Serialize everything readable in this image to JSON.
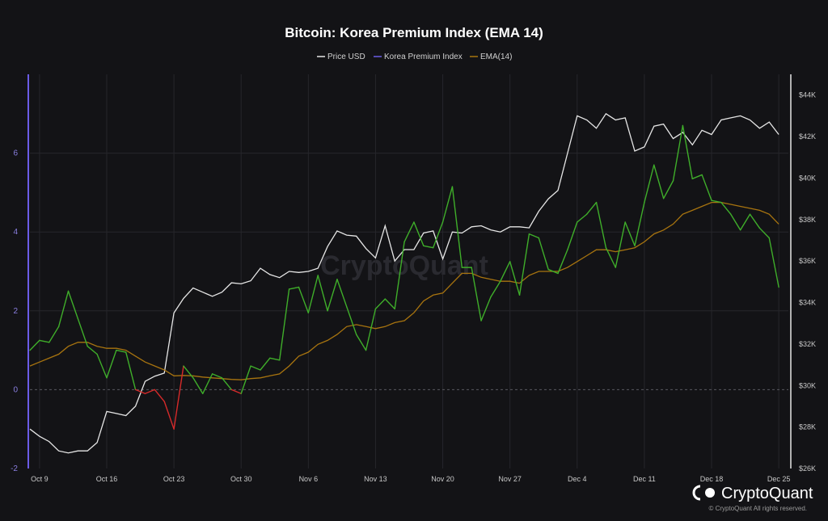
{
  "colors": {
    "background": "#131316",
    "price": "#e6e6e6",
    "premium_positive": "#3fae2a",
    "premium_negative": "#d62a2a",
    "ema": "#a8740f",
    "left_axis": "#6b5ce7",
    "grid": "#26262b"
  },
  "watermark": "CryptoQuant",
  "brand": {
    "logo_icon": "cryptoquant-logo-icon",
    "name": "CryptoQuant",
    "copyright": "© CryptoQuant All rights reserved."
  },
  "chart_data": {
    "type": "line",
    "title": "Bitcoin: Korea Premium Index (EMA 14)",
    "legend": [
      {
        "name": "Price USD",
        "color": "#e6e6e6"
      },
      {
        "name": "Korea Premium Index",
        "color": "#6b5ce7"
      },
      {
        "name": "EMA(14)",
        "color": "#a8740f"
      }
    ],
    "legend_position": "top-center",
    "grid": true,
    "x_range": [
      0,
      79
    ],
    "x_ticks": [
      {
        "label": "Oct 9",
        "x": 1
      },
      {
        "label": "Oct 16",
        "x": 8
      },
      {
        "label": "Oct 23",
        "x": 15
      },
      {
        "label": "Oct 30",
        "x": 22
      },
      {
        "label": "Nov 6",
        "x": 29
      },
      {
        "label": "Nov 13",
        "x": 36
      },
      {
        "label": "Nov 20",
        "x": 43
      },
      {
        "label": "Nov 27",
        "x": 50
      },
      {
        "label": "Dec 4",
        "x": 57
      },
      {
        "label": "Dec 11",
        "x": 64
      },
      {
        "label": "Dec 18",
        "x": 71
      },
      {
        "label": "Dec 25",
        "x": 78
      }
    ],
    "left_axis": {
      "range": [
        -2,
        8
      ],
      "ticks": [
        "-2",
        "0",
        "2",
        "4",
        "6"
      ]
    },
    "right_axis": {
      "range": [
        26000,
        45000
      ],
      "ticks": [
        "$26K",
        "$28K",
        "$30K",
        "$32K",
        "$34K",
        "$36K",
        "$38K",
        "$40K",
        "$42K",
        "$44K"
      ],
      "tick_values": [
        26000,
        28000,
        30000,
        32000,
        34000,
        36000,
        38000,
        40000,
        42000,
        44000
      ]
    },
    "series": [
      {
        "name": "Price USD",
        "axis": "right",
        "values": [
          27900,
          27550,
          27300,
          26850,
          26750,
          26850,
          26850,
          27250,
          28750,
          28650,
          28550,
          29000,
          30200,
          30450,
          30600,
          33500,
          34200,
          34700,
          34500,
          34300,
          34500,
          34950,
          34900,
          35050,
          35650,
          35350,
          35200,
          35500,
          35450,
          35500,
          35650,
          36700,
          37450,
          37250,
          37200,
          36600,
          36150,
          37700,
          36000,
          36550,
          36550,
          37350,
          37450,
          36100,
          37400,
          37350,
          37650,
          37700,
          37500,
          37400,
          37650,
          37650,
          37600,
          38400,
          39000,
          39400,
          41200,
          43000,
          42800,
          42400,
          43100,
          42800,
          42900,
          41300,
          41500,
          42500,
          42600,
          41900,
          42200,
          41600,
          42300,
          42100,
          42800,
          42900,
          43000,
          42800,
          42400,
          42700,
          42100
        ]
      },
      {
        "name": "Korea Premium Index",
        "axis": "left",
        "values": [
          1.0,
          1.25,
          1.2,
          1.6,
          2.5,
          1.8,
          1.1,
          0.9,
          0.3,
          1.0,
          0.95,
          0.0,
          -0.1,
          0.0,
          -0.3,
          -1.0,
          0.6,
          0.3,
          -0.1,
          0.4,
          0.3,
          0.0,
          -0.1,
          0.6,
          0.5,
          0.8,
          0.75,
          2.55,
          2.6,
          1.95,
          2.9,
          2.0,
          2.8,
          2.1,
          1.4,
          1.0,
          2.05,
          2.3,
          2.05,
          3.75,
          4.25,
          3.65,
          3.6,
          4.25,
          5.15,
          3.1,
          3.1,
          1.75,
          2.35,
          2.75,
          3.25,
          2.4,
          3.95,
          3.85,
          3.05,
          2.95,
          3.55,
          4.25,
          4.45,
          4.75,
          3.6,
          3.1,
          4.25,
          3.65,
          4.75,
          5.7,
          4.85,
          5.3,
          6.7,
          5.35,
          5.45,
          4.8,
          4.75,
          4.45,
          4.05,
          4.45,
          4.1,
          3.85,
          2.6
        ]
      },
      {
        "name": "EMA(14)",
        "axis": "left",
        "values": [
          0.6,
          0.7,
          0.8,
          0.9,
          1.1,
          1.2,
          1.2,
          1.1,
          1.05,
          1.05,
          1.0,
          0.85,
          0.7,
          0.6,
          0.5,
          0.35,
          0.36,
          0.35,
          0.32,
          0.3,
          0.28,
          0.26,
          0.25,
          0.28,
          0.3,
          0.35,
          0.4,
          0.6,
          0.85,
          0.95,
          1.15,
          1.25,
          1.4,
          1.6,
          1.65,
          1.6,
          1.55,
          1.6,
          1.7,
          1.75,
          1.95,
          2.25,
          2.4,
          2.45,
          2.7,
          2.95,
          2.95,
          2.85,
          2.8,
          2.75,
          2.75,
          2.7,
          2.9,
          3.0,
          3.0,
          3.0,
          3.1,
          3.25,
          3.4,
          3.55,
          3.55,
          3.5,
          3.55,
          3.6,
          3.75,
          3.95,
          4.05,
          4.2,
          4.45,
          4.55,
          4.65,
          4.75,
          4.75,
          4.7,
          4.65,
          4.6,
          4.55,
          4.45,
          4.2
        ]
      }
    ]
  }
}
